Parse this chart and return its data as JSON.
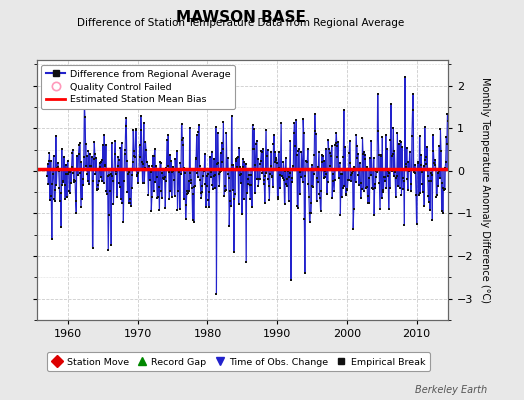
{
  "title": "MAWSON BASE",
  "subtitle": "Difference of Station Temperature Data from Regional Average",
  "ylabel": "Monthly Temperature Anomaly Difference (°C)",
  "xlabel_ticks": [
    1960,
    1970,
    1980,
    1990,
    2000,
    2010
  ],
  "ylim": [
    -3.5,
    2.6
  ],
  "yticks": [
    -3,
    -2,
    -1,
    0,
    1,
    2
  ],
  "xmin": 1955.5,
  "xmax": 2014.5,
  "bias_line": 0.05,
  "background_color": "#e8e8e8",
  "plot_bg_color": "#ffffff",
  "line_color": "#2222cc",
  "fill_color": "#aaaaee",
  "dot_color": "#111111",
  "bias_color": "#ff0000",
  "watermark": "Berkeley Earth",
  "legend_items": [
    {
      "label": "Difference from Regional Average"
    },
    {
      "label": "Quality Control Failed"
    },
    {
      "label": "Estimated Station Mean Bias"
    }
  ],
  "bottom_legend": [
    {
      "label": "Station Move",
      "marker": "D",
      "color": "#dd0000"
    },
    {
      "label": "Record Gap",
      "marker": "^",
      "color": "#008800"
    },
    {
      "label": "Time of Obs. Change",
      "marker": "v",
      "color": "#2222cc"
    },
    {
      "label": "Empirical Break",
      "marker": "s",
      "color": "#111111"
    }
  ],
  "seed": 42,
  "start_year": 1957.0,
  "end_year": 2014.5
}
